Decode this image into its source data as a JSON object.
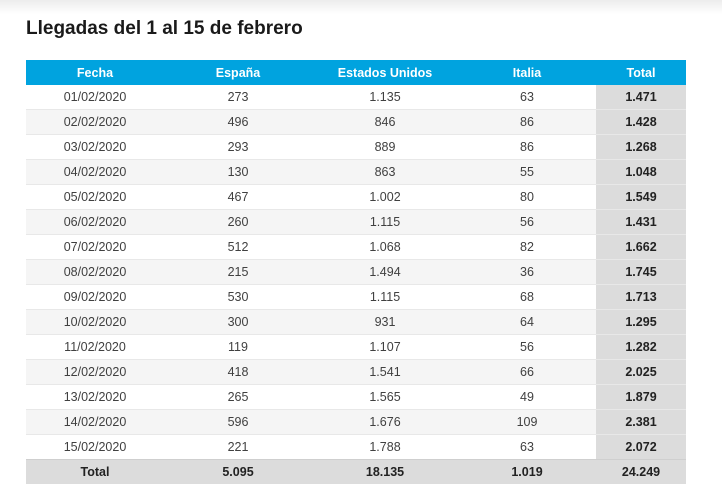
{
  "page": {
    "title": "Llegadas del 1 al 15 de febrero"
  },
  "table": {
    "headers": [
      "Fecha",
      "España",
      "Estados Unidos",
      "Italia",
      "Total"
    ],
    "rows": [
      [
        "01/02/2020",
        "273",
        "1.135",
        "63",
        "1.471"
      ],
      [
        "02/02/2020",
        "496",
        "846",
        "86",
        "1.428"
      ],
      [
        "03/02/2020",
        "293",
        "889",
        "86",
        "1.268"
      ],
      [
        "04/02/2020",
        "130",
        "863",
        "55",
        "1.048"
      ],
      [
        "05/02/2020",
        "467",
        "1.002",
        "80",
        "1.549"
      ],
      [
        "06/02/2020",
        "260",
        "1.115",
        "56",
        "1.431"
      ],
      [
        "07/02/2020",
        "512",
        "1.068",
        "82",
        "1.662"
      ],
      [
        "08/02/2020",
        "215",
        "1.494",
        "36",
        "1.745"
      ],
      [
        "09/02/2020",
        "530",
        "1.115",
        "68",
        "1.713"
      ],
      [
        "10/02/2020",
        "300",
        "931",
        "64",
        "1.295"
      ],
      [
        "11/02/2020",
        "119",
        "1.107",
        "56",
        "1.282"
      ],
      [
        "12/02/2020",
        "418",
        "1.541",
        "66",
        "2.025"
      ],
      [
        "13/02/2020",
        "265",
        "1.565",
        "49",
        "1.879"
      ],
      [
        "14/02/2020",
        "596",
        "1.676",
        "109",
        "2.381"
      ],
      [
        "15/02/2020",
        "221",
        "1.788",
        "63",
        "2.072"
      ]
    ],
    "footer": [
      "Total",
      "5.095",
      "18.135",
      "1.019",
      "24.249"
    ]
  },
  "colors": {
    "header_background": "#00a3df",
    "total_background": "#dcdcdc",
    "stripe_background": "#f5f5f5"
  }
}
